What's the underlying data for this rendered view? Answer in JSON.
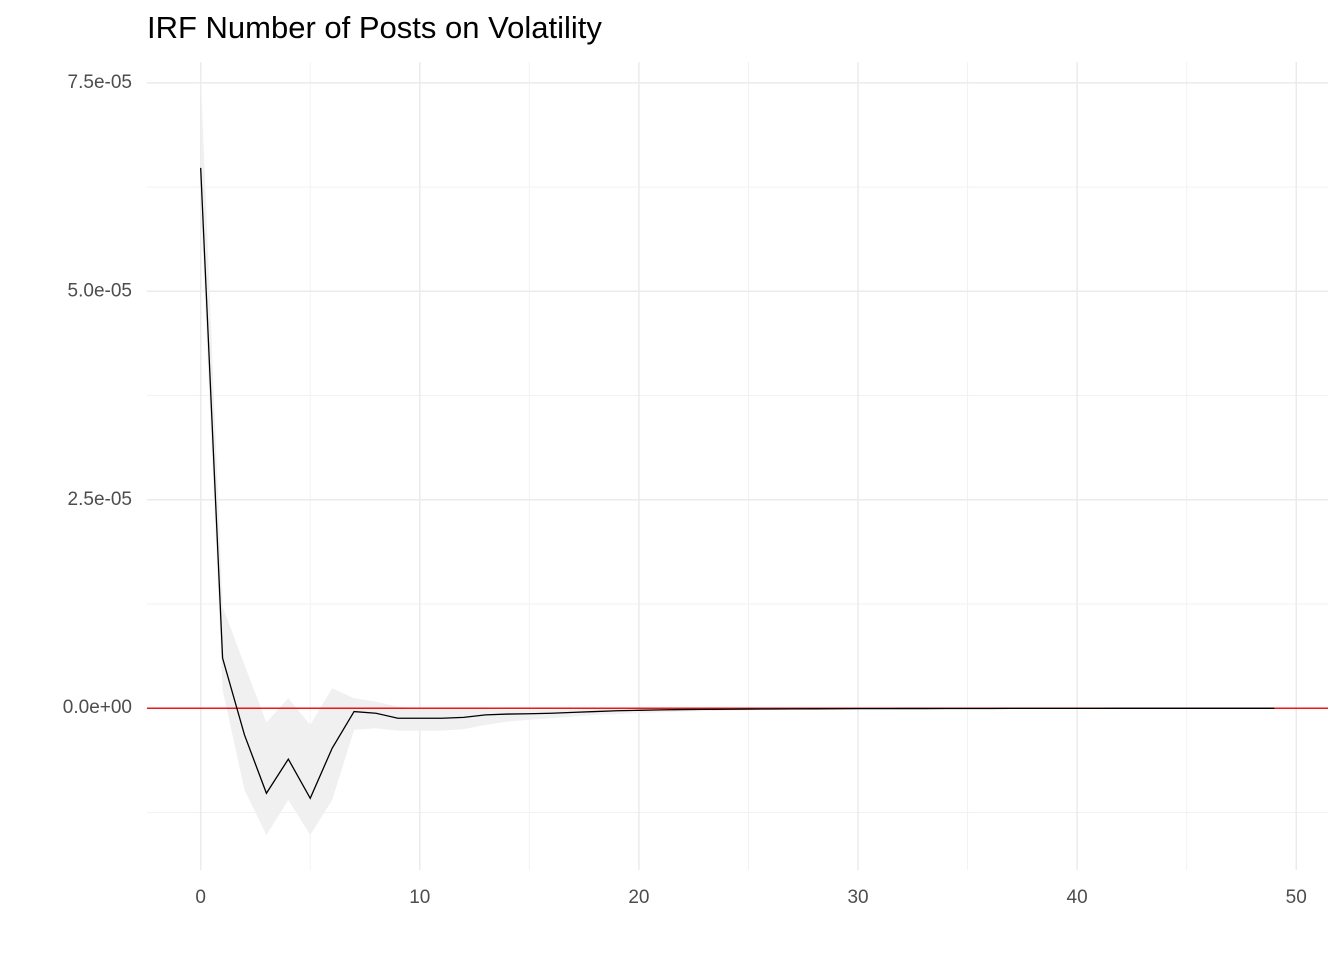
{
  "chart_data": {
    "type": "line",
    "title": "IRF Number of Posts on Volatility",
    "x": [
      0,
      1,
      2,
      3,
      4,
      5,
      6,
      7,
      8,
      9,
      10,
      11,
      12,
      13,
      14,
      15,
      16,
      17,
      18,
      19,
      20,
      21,
      22,
      23,
      24,
      25,
      26,
      27,
      28,
      29,
      30,
      31,
      32,
      33,
      34,
      35,
      36,
      37,
      38,
      39,
      40,
      41,
      42,
      43,
      44,
      45,
      46,
      47,
      48,
      49
    ],
    "values": [
      6.48e-05,
      6e-06,
      -3.2e-06,
      -1.02e-05,
      -6.1e-06,
      -1.08e-05,
      -4.8e-06,
      -4e-07,
      -6e-07,
      -1.2e-06,
      -1.2e-06,
      -1.2e-06,
      -1.1e-06,
      -8e-07,
      -7e-07,
      -6.6e-07,
      -6e-07,
      -5e-07,
      -4e-07,
      -3e-07,
      -2.5e-07,
      -2e-07,
      -1.6e-07,
      -1.4e-07,
      -1.2e-07,
      -1e-07,
      -9e-08,
      -8e-08,
      -7e-08,
      -6e-08,
      -5e-08,
      -5e-08,
      -4e-08,
      -4e-08,
      -3e-08,
      -3e-08,
      -3e-08,
      -2e-08,
      -2e-08,
      -2e-08,
      -2e-08,
      -2e-08,
      -1e-08,
      -1e-08,
      -1e-08,
      -1e-08,
      -1e-08,
      -1e-08,
      -1e-08,
      -1e-08
    ],
    "upper": [
      7.6e-05,
      1.22e-05,
      5.2e-06,
      -1.7e-06,
      1.2e-06,
      -2e-06,
      2.4e-06,
      1.2e-06,
      8e-07,
      2e-07,
      0,
      0,
      0,
      -1e-07,
      -2e-07,
      -2e-07,
      -2e-07,
      -1.5e-07,
      -1e-07,
      -1e-07,
      -5e-08,
      -4e-08,
      -3e-08,
      -2e-08,
      -2e-08,
      -1e-08,
      0,
      0,
      0,
      0,
      0,
      0,
      0,
      0,
      0,
      0,
      0,
      0,
      0,
      0,
      0,
      0,
      0,
      0,
      0,
      0,
      0,
      0,
      0,
      0
    ],
    "lower": [
      6e-05,
      2.2e-06,
      -9.8e-06,
      -1.52e-05,
      -1.1e-05,
      -1.52e-05,
      -1.1e-05,
      -2.6e-06,
      -2.4e-06,
      -2.7e-06,
      -2.7e-06,
      -2.7e-06,
      -2.5e-06,
      -2e-06,
      -1.6e-06,
      -1.4e-06,
      -1.2e-06,
      -1e-06,
      -8e-07,
      -7e-07,
      -6e-07,
      -5e-07,
      -4e-07,
      -3.5e-07,
      -3e-07,
      -2.5e-07,
      -2.2e-07,
      -2e-07,
      -1.8e-07,
      -1.6e-07,
      -1.4e-07,
      -1.3e-07,
      -1.2e-07,
      -1.1e-07,
      -1e-07,
      -9e-08,
      -8e-08,
      -7e-08,
      -7e-08,
      -6e-08,
      -6e-08,
      -5e-08,
      -5e-08,
      -4e-08,
      -4e-08,
      -4e-08,
      -3e-08,
      -3e-08,
      -3e-08,
      -3e-08
    ],
    "color": "#000000",
    "band_color": "#f0f0f0",
    "hline": 0,
    "hline_color": "#e41a1c",
    "xlim": [
      -2.45,
      51.45
    ],
    "xticks": [
      0,
      10,
      20,
      30,
      40,
      50
    ],
    "ylim": [
      -1.94e-05,
      7.75e-05
    ],
    "yticks": [
      {
        "value": 0,
        "label": "0.0e+00"
      },
      {
        "value": 2.5e-05,
        "label": "2.5e-05"
      },
      {
        "value": 5e-05,
        "label": "5.0e-05"
      },
      {
        "value": 7.5e-05,
        "label": "7.5e-05"
      }
    ],
    "grid": true
  }
}
